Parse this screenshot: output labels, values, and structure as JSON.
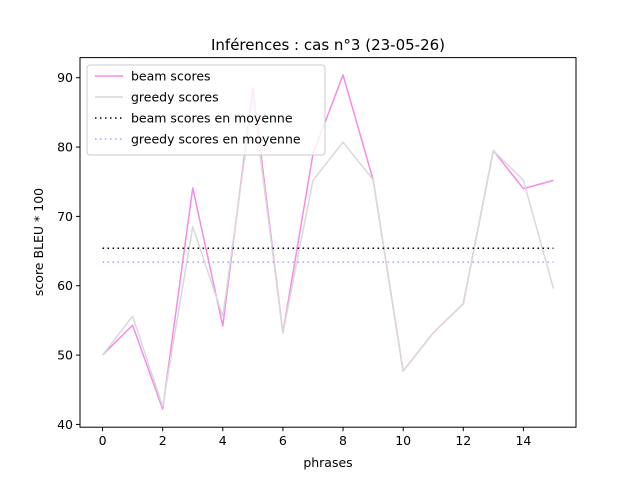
{
  "chart_data": {
    "type": "line",
    "title": "Inférences : cas n°3 (23-05-26)",
    "xlabel": "phrases",
    "ylabel": "score BLEU * 100",
    "xlim": [
      -0.75,
      15.75
    ],
    "ylim": [
      39.6,
      92.9
    ],
    "xticks": [
      0,
      2,
      4,
      6,
      8,
      10,
      12,
      14
    ],
    "yticks": [
      40,
      50,
      60,
      70,
      80,
      90
    ],
    "legend_position": "top-left",
    "grid": false,
    "x": [
      0,
      1,
      2,
      3,
      4,
      5,
      6,
      7,
      8,
      9,
      10,
      11,
      12,
      13,
      14,
      15
    ],
    "series": [
      {
        "name": "beam scores",
        "color": "#f78be5",
        "style": "solid",
        "values": [
          50.0,
          54.3,
          42.2,
          74.1,
          54.2,
          88.5,
          53.2,
          79.0,
          90.4,
          75.3,
          47.7,
          53.2,
          57.4,
          79.5,
          74.0,
          75.2
        ]
      },
      {
        "name": "greedy scores",
        "color": "#d9d9d9",
        "style": "solid",
        "values": [
          50.0,
          55.6,
          42.6,
          68.5,
          55.6,
          87.0,
          53.2,
          75.2,
          80.7,
          75.3,
          47.7,
          53.2,
          57.4,
          79.5,
          75.2,
          59.6
        ]
      },
      {
        "name": "beam scores en moyenne",
        "color": "#000000",
        "style": "dotted",
        "constant": 65.4
      },
      {
        "name": "greedy scores en moyenne",
        "color": "#a9a3f0",
        "style": "dotted",
        "constant": 63.4
      }
    ]
  }
}
